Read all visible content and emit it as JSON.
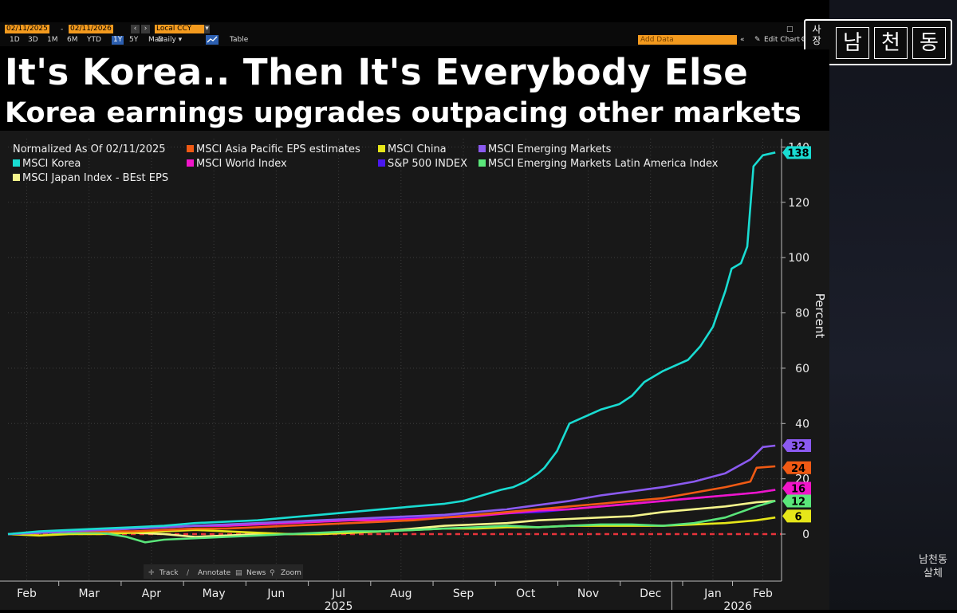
{
  "toolbar": {
    "start_date": "02/11/2025",
    "end_date": "02/11/2026",
    "currency": "Local CCY",
    "ranges": [
      "1D",
      "3D",
      "1M",
      "6M",
      "YTD",
      "1Y",
      "5Y",
      "Max"
    ],
    "active_range": "1Y",
    "frequency": "Daily ▾",
    "table_label": "Table",
    "add_data_placeholder": "Add Data",
    "edit_chart_label": "Edit Chart"
  },
  "header": {
    "title": "It's Korea.. Then It's Everybody Else",
    "subtitle": "Korea earnings upgrades outpacing other markets"
  },
  "logo": {
    "side_text": "사장",
    "chars": [
      "남",
      "천",
      "동"
    ],
    "watermark_line1": "남천동",
    "watermark_line2": "살체"
  },
  "chart_tools": {
    "track": "Track",
    "annotate": "Annotate",
    "news": "News",
    "zoom": "Zoom"
  },
  "chart_data": {
    "type": "line",
    "title": "It's Korea.. Then It's Everybody Else",
    "subtitle": "Korea earnings upgrades outpacing other markets",
    "normalized_label": "Normalized As Of 02/11/2025",
    "ylabel": "Percent",
    "ylim": [
      -17,
      143
    ],
    "yticks": [
      0,
      20,
      40,
      60,
      80,
      100,
      120,
      140
    ],
    "x_range": [
      0,
      12.4
    ],
    "x_ticks": [
      {
        "label": "Feb",
        "x": 0.3
      },
      {
        "label": "Mar",
        "x": 1.3
      },
      {
        "label": "Apr",
        "x": 2.3
      },
      {
        "label": "May",
        "x": 3.3
      },
      {
        "label": "Jun",
        "x": 4.3
      },
      {
        "label": "Jul",
        "x": 5.3
      },
      {
        "label": "Aug",
        "x": 6.3
      },
      {
        "label": "Sep",
        "x": 7.3
      },
      {
        "label": "Oct",
        "x": 8.3
      },
      {
        "label": "Nov",
        "x": 9.3
      },
      {
        "label": "Dec",
        "x": 10.3
      },
      {
        "label": "Jan",
        "x": 11.3
      },
      {
        "label": "Feb",
        "x": 12.1
      }
    ],
    "year_labels": [
      {
        "label": "2025",
        "x": 5.3
      },
      {
        "label": "2026",
        "x": 11.7
      }
    ],
    "zero_line": {
      "y": 0,
      "style": "dashed",
      "color": "#e8333b"
    },
    "series": [
      {
        "name": "MSCI Japan Index - BEst EPS",
        "color": "#f5f58c",
        "last": 12,
        "last_label": "12",
        "x": [
          0,
          0.5,
          1,
          1.5,
          2,
          2.5,
          3,
          3.5,
          4,
          4.5,
          5,
          5.5,
          6,
          6.5,
          7,
          7.5,
          8,
          8.5,
          9,
          9.5,
          10,
          10.5,
          11,
          11.5,
          12,
          12.3
        ],
        "y": [
          0,
          0.5,
          1,
          1,
          0.5,
          0,
          -1,
          -0.5,
          0,
          0,
          0,
          0.5,
          1,
          2,
          3,
          3.5,
          4,
          5,
          5.5,
          6,
          6.5,
          8,
          9,
          10,
          11.5,
          12
        ]
      },
      {
        "name": "MSCI China",
        "color": "#e6e619",
        "last": 6,
        "last_label": "6",
        "x": [
          0,
          0.5,
          1,
          1.5,
          2,
          2.5,
          3,
          3.5,
          4,
          4.5,
          5,
          5.5,
          6,
          6.5,
          7,
          7.5,
          8,
          8.5,
          9,
          9.5,
          10,
          10.5,
          11,
          11.5,
          12,
          12.3
        ],
        "y": [
          0,
          -0.5,
          0,
          0,
          0.5,
          1,
          1.5,
          1,
          0.5,
          0,
          0,
          0.5,
          1,
          1.5,
          2,
          2,
          2.5,
          2.5,
          3,
          3,
          3,
          3,
          3.5,
          4,
          5,
          6
        ]
      },
      {
        "name": "MSCI Emerging Markets Latin America Index",
        "color": "#5ae67a",
        "last": 12,
        "last_label": "12",
        "x": [
          0,
          0.5,
          1,
          1.5,
          1.9,
          2.2,
          2.5,
          3,
          3.5,
          4,
          4.5,
          5,
          5.5,
          6,
          6.5,
          7,
          7.5,
          8,
          8.5,
          9,
          9.5,
          10,
          10.5,
          11,
          11.5,
          12,
          12.3
        ],
        "y": [
          0,
          0.5,
          0.5,
          0.5,
          -1,
          -3,
          -2,
          -1.5,
          -1,
          -0.5,
          0,
          0.5,
          1,
          1,
          1.5,
          2,
          2.5,
          3,
          2.5,
          3,
          3.5,
          3.5,
          3,
          4,
          6,
          10,
          12
        ]
      },
      {
        "name": "S&P 500 INDEX",
        "color": "#4a18f0",
        "last": 16,
        "last_label": "16",
        "x": [
          0,
          0.5,
          1,
          1.5,
          2,
          2.5,
          3,
          3.5,
          4,
          4.5,
          5,
          5.5,
          6,
          6.5,
          7,
          7.5,
          8,
          8.5,
          9,
          9.5,
          10,
          10.5,
          11,
          11.5,
          12,
          12.3
        ],
        "y": [
          0,
          0.5,
          1,
          1.5,
          2,
          2.5,
          3,
          3,
          3.5,
          4,
          4.5,
          5,
          5.5,
          6,
          6.5,
          7,
          7.5,
          8,
          9,
          10,
          11,
          12,
          13,
          14,
          15,
          16
        ]
      },
      {
        "name": "MSCI World Index",
        "color": "#f015c8",
        "last": 16,
        "last_label": "16",
        "x": [
          0,
          0.5,
          1,
          1.5,
          2,
          2.5,
          3,
          3.5,
          4,
          4.5,
          5,
          5.5,
          6,
          6.5,
          7,
          7.5,
          8,
          8.5,
          9,
          9.5,
          10,
          10.5,
          11,
          11.5,
          12,
          12.3
        ],
        "y": [
          0,
          0.5,
          1,
          1.5,
          2,
          2.5,
          3,
          3,
          3.5,
          4,
          4.5,
          5,
          5,
          5.5,
          6,
          6.5,
          7.5,
          8.5,
          9,
          10,
          11,
          12,
          13,
          14,
          15,
          16
        ]
      },
      {
        "name": "MSCI Asia Pacific EPS estimates",
        "color": "#f05a14",
        "last": 24,
        "last_label": "24",
        "x": [
          0,
          0.5,
          1,
          1.5,
          2,
          2.5,
          3,
          3.5,
          4,
          4.5,
          5,
          5.5,
          6,
          6.5,
          7,
          7.5,
          8,
          8.5,
          9,
          9.5,
          10,
          10.5,
          11,
          11.5,
          11.9,
          12.0,
          12.3
        ],
        "y": [
          0,
          0.5,
          1,
          1,
          1,
          1.5,
          2,
          2,
          2.5,
          3,
          3.5,
          4,
          4.5,
          5,
          6,
          7,
          8,
          9,
          10,
          11,
          12,
          13,
          15,
          17,
          19,
          24,
          24.5
        ]
      },
      {
        "name": "MSCI Emerging Markets",
        "color": "#8b5af0",
        "last": 32,
        "last_label": "32",
        "x": [
          0,
          0.5,
          1,
          1.5,
          2,
          2.5,
          3,
          3.5,
          4,
          4.5,
          5,
          5.5,
          6,
          6.5,
          7,
          7.5,
          8,
          8.5,
          9,
          9.5,
          10,
          10.5,
          11,
          11.5,
          11.9,
          12.1,
          12.3
        ],
        "y": [
          0,
          0.5,
          1,
          1.5,
          2,
          2.5,
          3,
          3.5,
          4,
          4.5,
          5,
          5.5,
          6,
          6.5,
          7,
          8,
          9,
          10.5,
          12,
          14,
          15.5,
          17,
          19,
          22,
          27,
          31.5,
          32
        ]
      },
      {
        "name": "MSCI Korea",
        "color": "#19dcd2",
        "last": 138,
        "last_label": "138",
        "x": [
          0,
          0.5,
          1,
          1.5,
          2,
          2.5,
          3,
          3.5,
          4,
          4.5,
          5,
          5.5,
          6,
          6.5,
          7,
          7.3,
          7.6,
          7.9,
          8.1,
          8.3,
          8.5,
          8.6,
          8.8,
          9.0,
          9.2,
          9.5,
          9.8,
          10.0,
          10.2,
          10.5,
          10.7,
          10.9,
          11.1,
          11.3,
          11.5,
          11.6,
          11.75,
          11.85,
          11.95,
          12.1,
          12.3
        ],
        "y": [
          0,
          1,
          1.5,
          2,
          2.5,
          3,
          4,
          4.5,
          5,
          6,
          7,
          8,
          9,
          10,
          11,
          12,
          14,
          16,
          17,
          19,
          22,
          24,
          30,
          40,
          42,
          45,
          47,
          50,
          55,
          59,
          61,
          63,
          68,
          75,
          88,
          96,
          98,
          104,
          133,
          137,
          138
        ]
      }
    ],
    "legend": [
      {
        "name": "Normalized As Of 02/11/2025",
        "color": ""
      },
      {
        "name": "MSCI Asia Pacific EPS estimates",
        "color": "#f05a14"
      },
      {
        "name": "MSCI China",
        "color": "#e6e619"
      },
      {
        "name": "MSCI Emerging Markets",
        "color": "#8b5af0"
      },
      {
        "name": "MSCI Korea",
        "color": "#19dcd2"
      },
      {
        "name": "MSCI World Index",
        "color": "#f015c8"
      },
      {
        "name": "S&P 500 INDEX",
        "color": "#4a18f0"
      },
      {
        "name": "MSCI Emerging Markets Latin America Index",
        "color": "#5ae67a"
      },
      {
        "name": "MSCI Japan Index - BEst EPS",
        "color": "#f5f58c"
      }
    ],
    "end_tags": [
      {
        "label": "138",
        "value": 138,
        "color": "#19dcd2"
      },
      {
        "label": "32",
        "value": 32,
        "color": "#8b5af0"
      },
      {
        "label": "24",
        "value": 24,
        "color": "#f05a14"
      },
      {
        "label": "16",
        "value": 16,
        "color": "#f015c8"
      },
      {
        "label": "12",
        "value": 12,
        "color": "#5ae67a"
      },
      {
        "label": "6",
        "value": 6,
        "color": "#e6e619"
      }
    ]
  }
}
